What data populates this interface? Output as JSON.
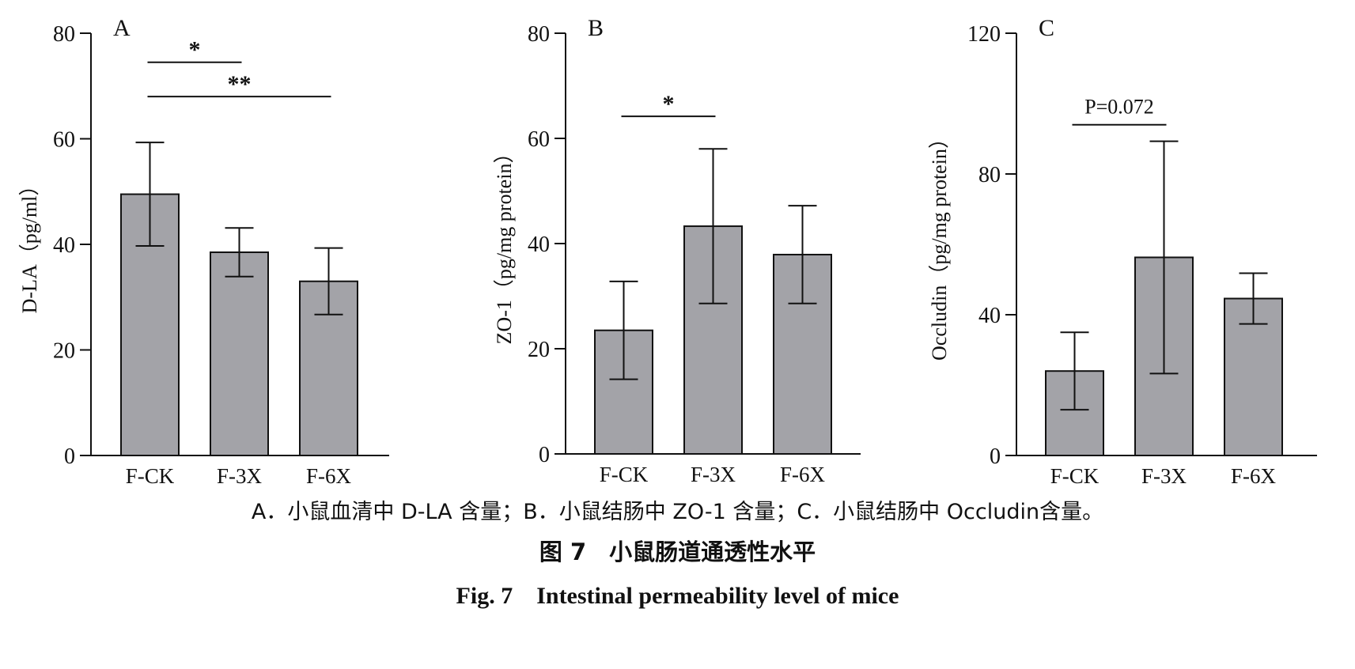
{
  "figure": {
    "caption_sub": "A．小鼠血清中 D-LA 含量；B．小鼠结肠中 ZO-1 含量；C．小鼠结肠中 Occludin含量。",
    "caption_cn": "图 7　小鼠肠道通透性水平",
    "caption_en": "Fig. 7　Intestinal permeability level of mice",
    "bar_color": "#a3a3a8",
    "line_color": "#111111"
  },
  "chart_data": [
    {
      "panel": "A",
      "type": "bar",
      "categories": [
        "F-CK",
        "F-3X",
        "F-6X"
      ],
      "values": [
        49.5,
        38.5,
        33.0
      ],
      "errors": [
        9.8,
        4.6,
        6.3
      ],
      "ylabel": "D-LA（pg/ml）",
      "ylim": [
        0,
        80
      ],
      "yticks": [
        0,
        20,
        40,
        60,
        80
      ],
      "significance": [
        {
          "from": 0,
          "to": 1,
          "y": 74.5,
          "label": "*"
        },
        {
          "from": 0,
          "to": 2,
          "y": 68.0,
          "label": "**"
        }
      ]
    },
    {
      "panel": "B",
      "type": "bar",
      "categories": [
        "F-CK",
        "F-3X",
        "F-6X"
      ],
      "values": [
        23.5,
        43.3,
        37.9
      ],
      "errors": [
        9.3,
        14.7,
        9.3
      ],
      "ylabel": "ZO-1（pg/mg protein）",
      "ylim": [
        0,
        80
      ],
      "yticks": [
        0,
        20,
        40,
        60,
        80
      ],
      "significance": [
        {
          "from": 0,
          "to": 1,
          "y": 64.2,
          "label": "*"
        }
      ]
    },
    {
      "panel": "C",
      "type": "bar",
      "categories": [
        "F-CK",
        "F-3X",
        "F-6X"
      ],
      "values": [
        24.0,
        56.3,
        44.6
      ],
      "errors": [
        11.0,
        33.0,
        7.2
      ],
      "ylabel": "Occludin（pg/mg protein）",
      "ylim": [
        0,
        120
      ],
      "yticks": [
        0,
        40,
        80,
        120
      ],
      "significance": [
        {
          "from": 0,
          "to": 1,
          "y": 94.0,
          "label": "P=0.072"
        }
      ]
    }
  ]
}
